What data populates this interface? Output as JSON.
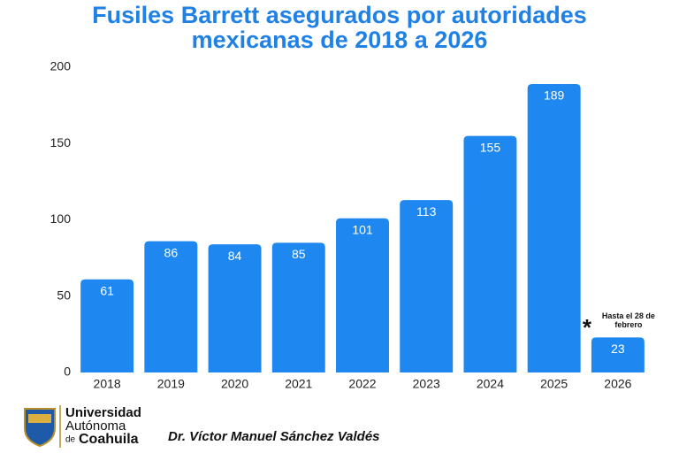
{
  "chart_data": {
    "type": "bar",
    "title": [
      "Fusiles Barrett asegurados por autoridades",
      "mexicanas de 2018 a 2026"
    ],
    "categories": [
      "2018",
      "2019",
      "2020",
      "2021",
      "2022",
      "2023",
      "2024",
      "2025",
      "2026"
    ],
    "values": [
      61,
      86,
      84,
      85,
      101,
      113,
      155,
      189,
      23
    ],
    "color": "#1e88f0",
    "ylim": [
      0,
      200
    ],
    "yticks": [
      0,
      50,
      100,
      150,
      200
    ],
    "grid": false,
    "annotation": {
      "marker": "*",
      "text": "Hasta el 28 de febrero",
      "category": 8
    }
  },
  "footer": {
    "university": [
      "Universidad",
      "Autónoma",
      "de",
      "Coahuila"
    ],
    "author": "Dr. Víctor Manuel Sánchez Valdés"
  }
}
